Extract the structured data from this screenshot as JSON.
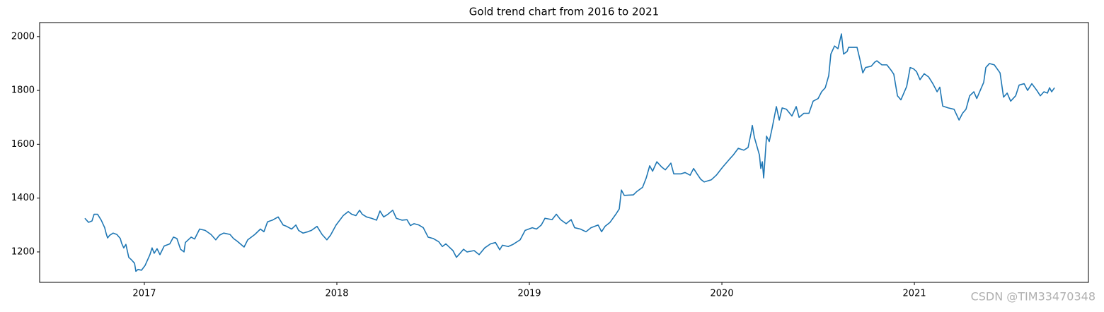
{
  "chart_data": {
    "type": "line",
    "title": "Gold trend chart from 2016 to 2021",
    "watermark": "CSDN @TIM33470348",
    "x": [
      2016.691,
      2016.71,
      2016.728,
      2016.739,
      2016.757,
      2016.776,
      2016.794,
      2016.801,
      2016.809,
      2016.82,
      2016.838,
      2016.857,
      2016.875,
      2016.882,
      2016.893,
      2016.904,
      2016.919,
      2016.934,
      2016.949,
      2016.956,
      2016.967,
      2016.985,
      2017.004,
      2017.029,
      2017.04,
      2017.051,
      2017.066,
      2017.081,
      2017.103,
      2017.132,
      2017.151,
      2017.169,
      2017.188,
      2017.206,
      2017.213,
      2017.243,
      2017.261,
      2017.287,
      2017.316,
      2017.346,
      2017.371,
      2017.39,
      2017.412,
      2017.445,
      2017.463,
      2017.482,
      2017.518,
      2017.537,
      2017.574,
      2017.603,
      2017.621,
      2017.64,
      2017.665,
      2017.695,
      2017.721,
      2017.739,
      2017.765,
      2017.787,
      2017.801,
      2017.824,
      2017.849,
      2017.868,
      2017.897,
      2017.923,
      2017.948,
      2017.967,
      2017.996,
      2018.033,
      2018.059,
      2018.077,
      2018.099,
      2018.118,
      2018.132,
      2018.154,
      2018.18,
      2018.206,
      2018.224,
      2018.243,
      2018.265,
      2018.29,
      2018.309,
      2018.338,
      2018.364,
      2018.382,
      2018.401,
      2018.426,
      2018.449,
      2018.474,
      2018.5,
      2018.529,
      2018.548,
      2018.566,
      2018.603,
      2018.621,
      2018.64,
      2018.658,
      2018.676,
      2018.713,
      2018.739,
      2018.768,
      2018.798,
      2018.824,
      2018.846,
      2018.86,
      2018.89,
      2018.915,
      2018.952,
      2018.978,
      2019.015,
      2019.037,
      2019.062,
      2019.081,
      2019.118,
      2019.14,
      2019.162,
      2019.191,
      2019.217,
      2019.235,
      2019.265,
      2019.294,
      2019.32,
      2019.357,
      2019.375,
      2019.393,
      2019.419,
      2019.449,
      2019.467,
      2019.478,
      2019.493,
      2019.54,
      2019.559,
      2019.588,
      2019.607,
      2019.625,
      2019.64,
      2019.662,
      2019.688,
      2019.706,
      2019.724,
      2019.735,
      2019.75,
      2019.787,
      2019.809,
      2019.835,
      2019.853,
      2019.871,
      2019.89,
      2019.908,
      2019.945,
      2019.971,
      2020.004,
      2020.04,
      2020.059,
      2020.085,
      2020.114,
      2020.136,
      2020.151,
      2020.158,
      2020.169,
      2020.195,
      2020.202,
      2020.21,
      2020.217,
      2020.232,
      2020.246,
      2020.261,
      2020.283,
      2020.298,
      2020.313,
      2020.335,
      2020.364,
      2020.386,
      2020.401,
      2020.426,
      2020.452,
      2020.474,
      2020.5,
      2020.518,
      2020.537,
      2020.555,
      2020.566,
      2020.585,
      2020.603,
      2020.621,
      2020.632,
      2020.651,
      2020.658,
      2020.702,
      2020.717,
      2020.732,
      2020.746,
      2020.776,
      2020.794,
      2020.805,
      2020.831,
      2020.857,
      2020.879,
      2020.893,
      2020.912,
      2020.93,
      2020.96,
      2020.978,
      2020.996,
      2021.011,
      2021.029,
      2021.051,
      2021.074,
      2021.096,
      2021.118,
      2021.132,
      2021.147,
      2021.176,
      2021.206,
      2021.232,
      2021.25,
      2021.268,
      2021.287,
      2021.309,
      2021.324,
      2021.342,
      2021.36,
      2021.371,
      2021.39,
      2021.415,
      2021.445,
      2021.463,
      2021.482,
      2021.5,
      2021.526,
      2021.544,
      2021.57,
      2021.588,
      2021.61,
      2021.636,
      2021.654,
      2021.673,
      2021.691,
      2021.702,
      2021.713,
      2021.728
    ],
    "series": [
      {
        "name": "Gold",
        "color": "#1f77b4",
        "values": [
          1325,
          1310,
          1315,
          1340,
          1340,
          1318,
          1290,
          1270,
          1252,
          1262,
          1270,
          1265,
          1250,
          1232,
          1215,
          1228,
          1180,
          1170,
          1158,
          1128,
          1135,
          1132,
          1150,
          1190,
          1215,
          1195,
          1212,
          1190,
          1222,
          1230,
          1255,
          1250,
          1210,
          1200,
          1235,
          1255,
          1248,
          1285,
          1280,
          1265,
          1245,
          1262,
          1270,
          1265,
          1250,
          1240,
          1218,
          1245,
          1265,
          1285,
          1275,
          1312,
          1318,
          1330,
          1300,
          1295,
          1285,
          1300,
          1280,
          1270,
          1275,
          1280,
          1295,
          1265,
          1245,
          1262,
          1300,
          1335,
          1350,
          1340,
          1335,
          1355,
          1340,
          1330,
          1325,
          1318,
          1352,
          1330,
          1340,
          1355,
          1325,
          1318,
          1320,
          1298,
          1305,
          1300,
          1290,
          1255,
          1250,
          1238,
          1220,
          1230,
          1205,
          1180,
          1195,
          1210,
          1200,
          1205,
          1190,
          1215,
          1230,
          1235,
          1208,
          1225,
          1220,
          1228,
          1245,
          1280,
          1290,
          1285,
          1300,
          1325,
          1320,
          1340,
          1320,
          1305,
          1320,
          1290,
          1285,
          1275,
          1290,
          1300,
          1275,
          1295,
          1310,
          1340,
          1360,
          1430,
          1410,
          1412,
          1425,
          1440,
          1475,
          1520,
          1500,
          1535,
          1515,
          1505,
          1520,
          1530,
          1490,
          1490,
          1495,
          1485,
          1510,
          1490,
          1470,
          1460,
          1468,
          1485,
          1515,
          1545,
          1560,
          1585,
          1578,
          1588,
          1640,
          1670,
          1625,
          1560,
          1510,
          1535,
          1475,
          1630,
          1610,
          1660,
          1740,
          1690,
          1735,
          1730,
          1705,
          1740,
          1700,
          1715,
          1715,
          1760,
          1770,
          1795,
          1810,
          1855,
          1935,
          1965,
          1955,
          2010,
          1935,
          1945,
          1960,
          1960,
          1915,
          1865,
          1885,
          1890,
          1905,
          1910,
          1895,
          1895,
          1875,
          1860,
          1780,
          1765,
          1815,
          1885,
          1880,
          1870,
          1840,
          1862,
          1850,
          1825,
          1795,
          1812,
          1742,
          1735,
          1730,
          1690,
          1715,
          1730,
          1780,
          1795,
          1770,
          1800,
          1830,
          1885,
          1900,
          1895,
          1865,
          1775,
          1790,
          1760,
          1780,
          1820,
          1825,
          1800,
          1825,
          1800,
          1780,
          1795,
          1790,
          1810,
          1795,
          1810
        ]
      }
    ],
    "xlim": [
      2016.456,
      2021.904
    ],
    "xticks": [
      2017,
      2018,
      2019,
      2020,
      2021
    ],
    "ylim": [
      1087,
      2052
    ],
    "yticks": [
      1200,
      1400,
      1600,
      1800,
      2000
    ],
    "grid": false
  }
}
